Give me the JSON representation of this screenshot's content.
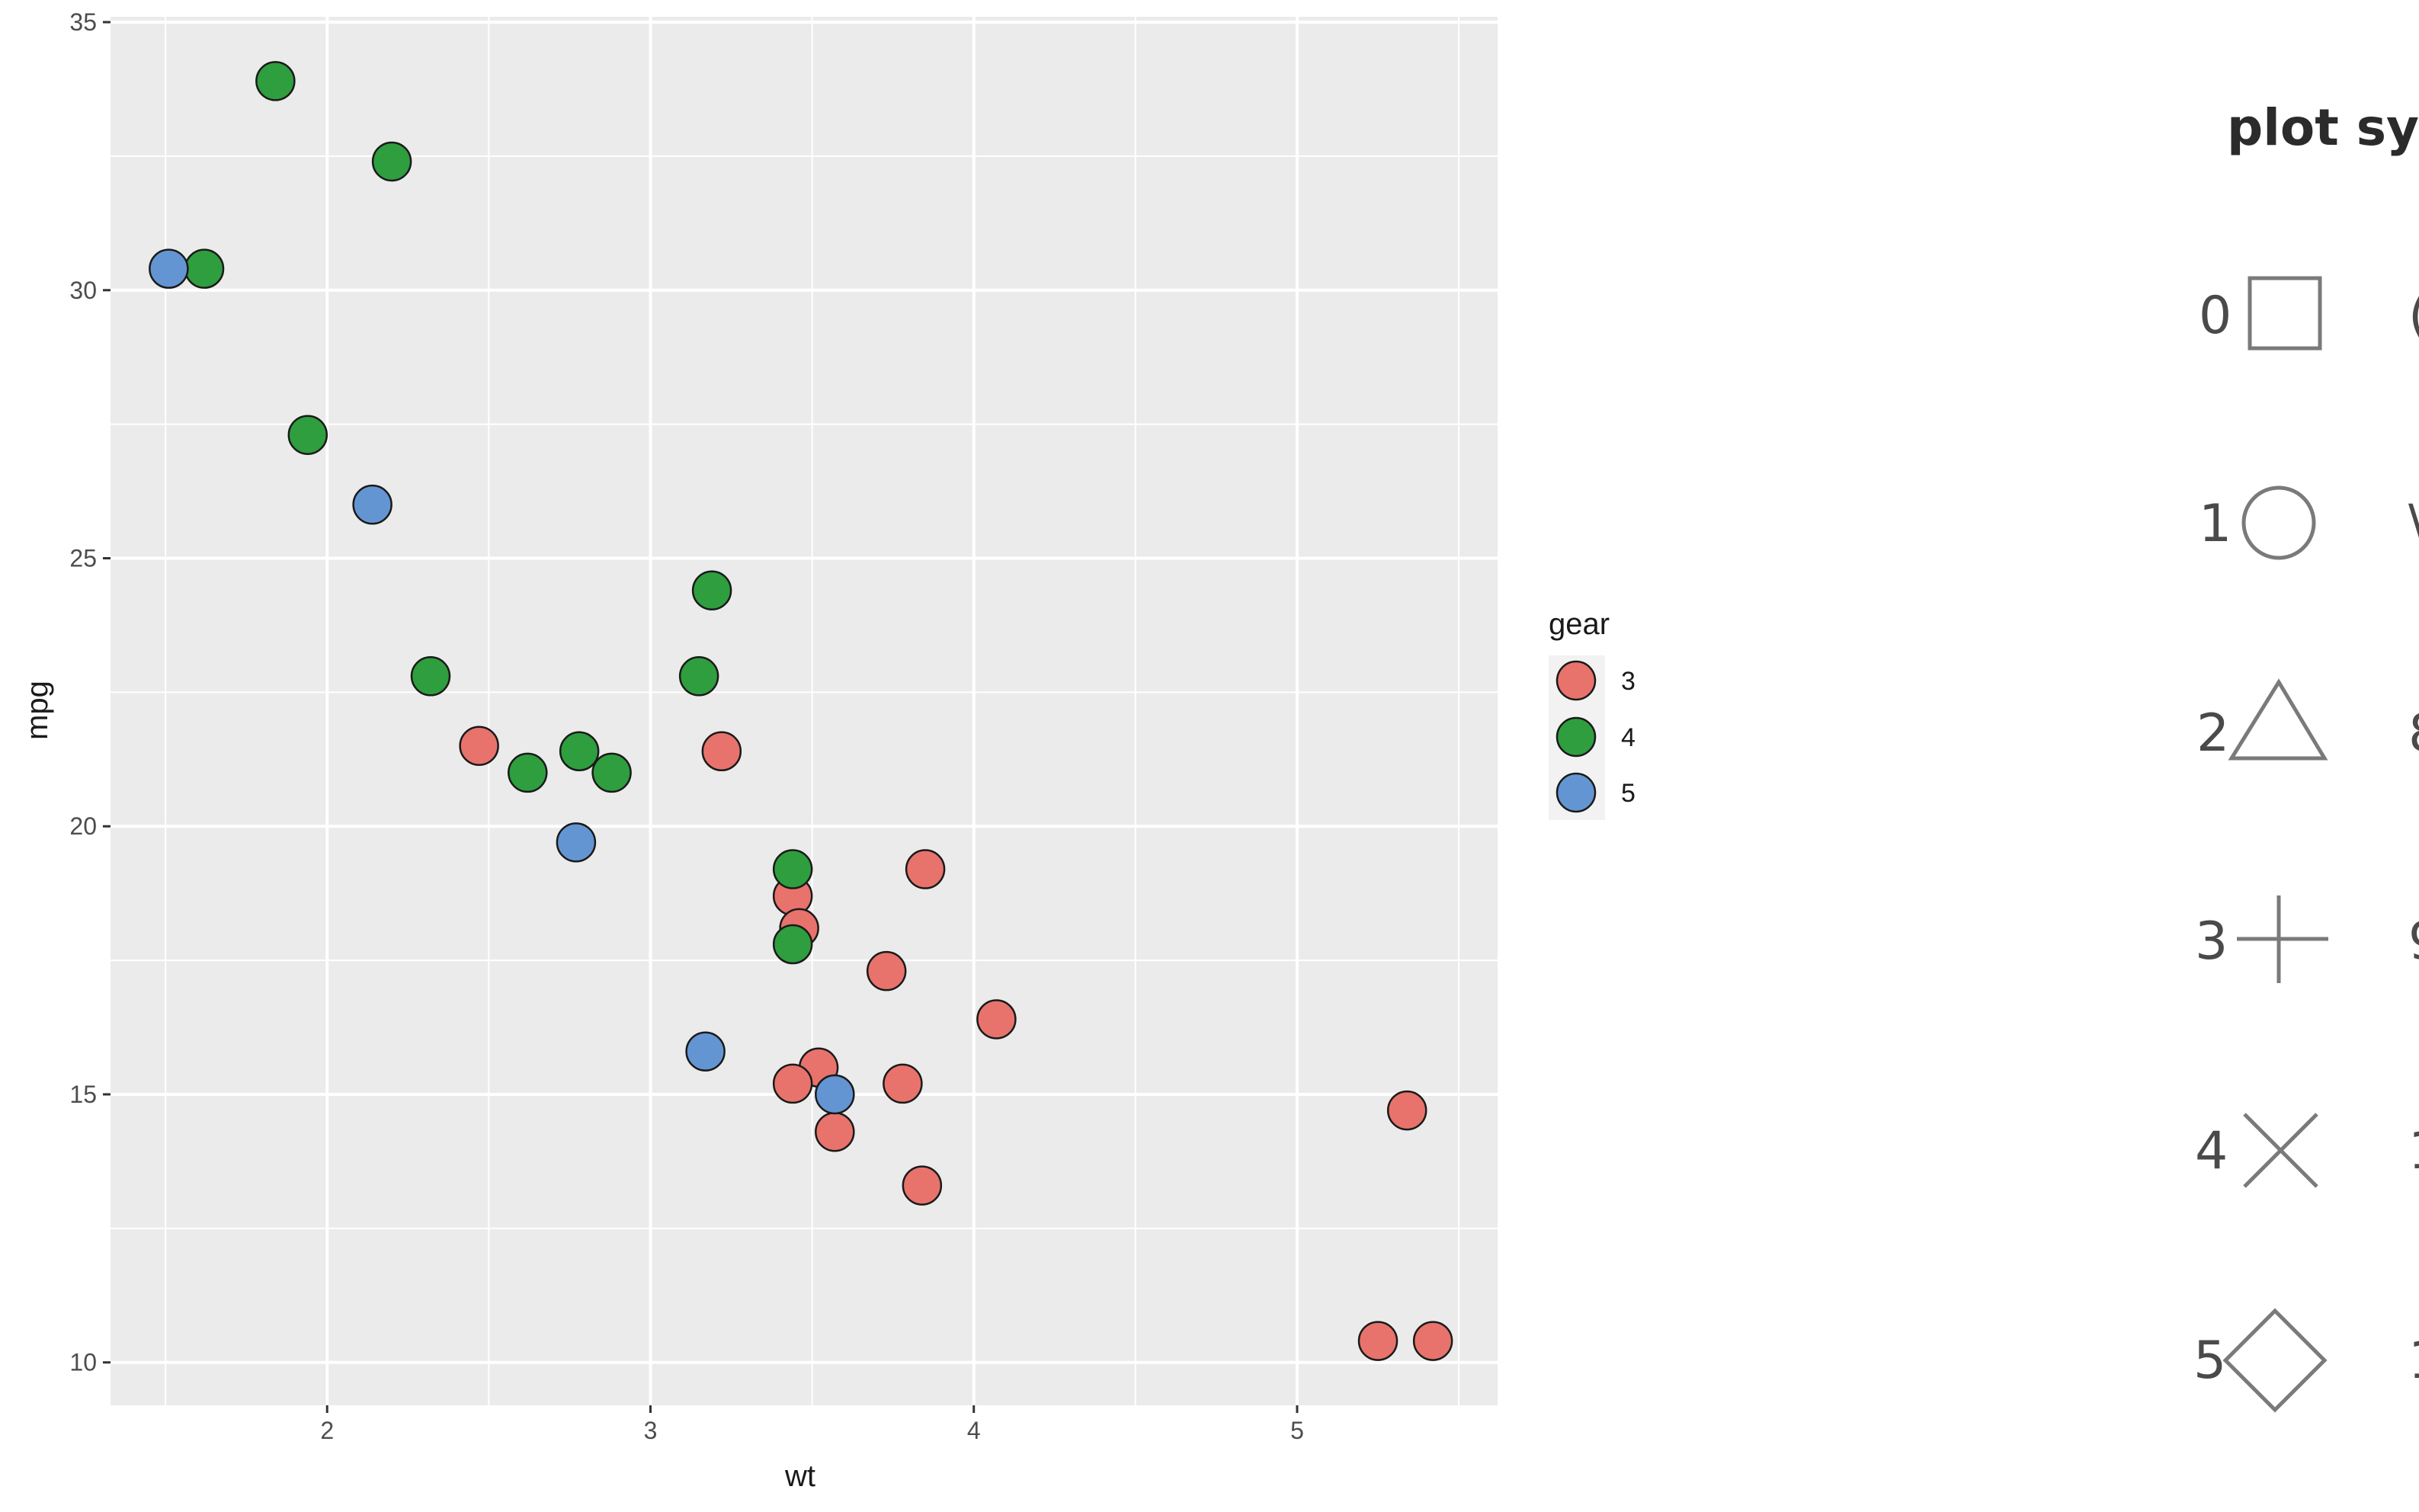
{
  "chart_data": {
    "type": "scatter",
    "xlabel": "wt",
    "ylabel": "mpg",
    "xlim": [
      1.33,
      5.62
    ],
    "ylim": [
      9.2,
      35.1
    ],
    "x_ticks": [
      2,
      3,
      4,
      5
    ],
    "y_ticks": [
      10,
      15,
      20,
      25,
      30,
      35
    ],
    "x_tick_labels": [
      "2",
      "3",
      "4",
      "5"
    ],
    "y_tick_labels": [
      "10",
      "15",
      "20",
      "25",
      "30",
      "35"
    ],
    "grid": true,
    "legend": {
      "title": "gear",
      "position": "right",
      "entries": [
        "3",
        "4",
        "5"
      ]
    },
    "series": [
      {
        "name": "3",
        "color": "#E8736C",
        "points": [
          [
            2.47,
            21.5
          ],
          [
            3.22,
            21.4
          ],
          [
            3.44,
            18.7
          ],
          [
            3.46,
            18.1
          ],
          [
            3.85,
            19.2
          ],
          [
            3.73,
            17.3
          ],
          [
            3.52,
            15.5
          ],
          [
            3.44,
            15.2
          ],
          [
            3.57,
            14.3
          ],
          [
            3.78,
            15.2
          ],
          [
            4.07,
            16.4
          ],
          [
            3.84,
            13.3
          ],
          [
            5.25,
            10.4
          ],
          [
            5.42,
            10.4
          ],
          [
            5.34,
            14.7
          ]
        ]
      },
      {
        "name": "4",
        "color": "#2E9E3E",
        "points": [
          [
            1.84,
            33.9
          ],
          [
            2.2,
            32.4
          ],
          [
            1.62,
            30.4
          ],
          [
            1.94,
            27.3
          ],
          [
            3.19,
            24.4
          ],
          [
            2.32,
            22.8
          ],
          [
            3.15,
            22.8
          ],
          [
            2.62,
            21.0
          ],
          [
            2.88,
            21.0
          ],
          [
            2.78,
            21.4
          ],
          [
            3.44,
            19.2
          ],
          [
            3.44,
            17.8
          ]
        ]
      },
      {
        "name": "5",
        "color": "#6495D3",
        "points": [
          [
            1.51,
            30.4
          ],
          [
            2.14,
            26.0
          ],
          [
            2.77,
            19.7
          ],
          [
            3.17,
            15.8
          ],
          [
            3.57,
            15.0
          ]
        ]
      }
    ]
  },
  "colors": {
    "panel_background": "#EBEBEB",
    "grid_line": "#FFFFFF",
    "point_outline": "#1a1a1a"
  },
  "symbols_panel": {
    "title": "plot sy",
    "items": [
      {
        "num": "0",
        "shape": "square-icon"
      },
      {
        "num": "1",
        "shape": "circle-icon"
      },
      {
        "num": "2",
        "shape": "triangle-icon"
      },
      {
        "num": "3",
        "shape": "plus-icon"
      },
      {
        "num": "4",
        "shape": "cross-icon"
      },
      {
        "num": "5",
        "shape": "diamond-icon"
      }
    ],
    "right_col": [
      "(",
      "\\",
      "8",
      "9",
      "1",
      "1"
    ]
  }
}
